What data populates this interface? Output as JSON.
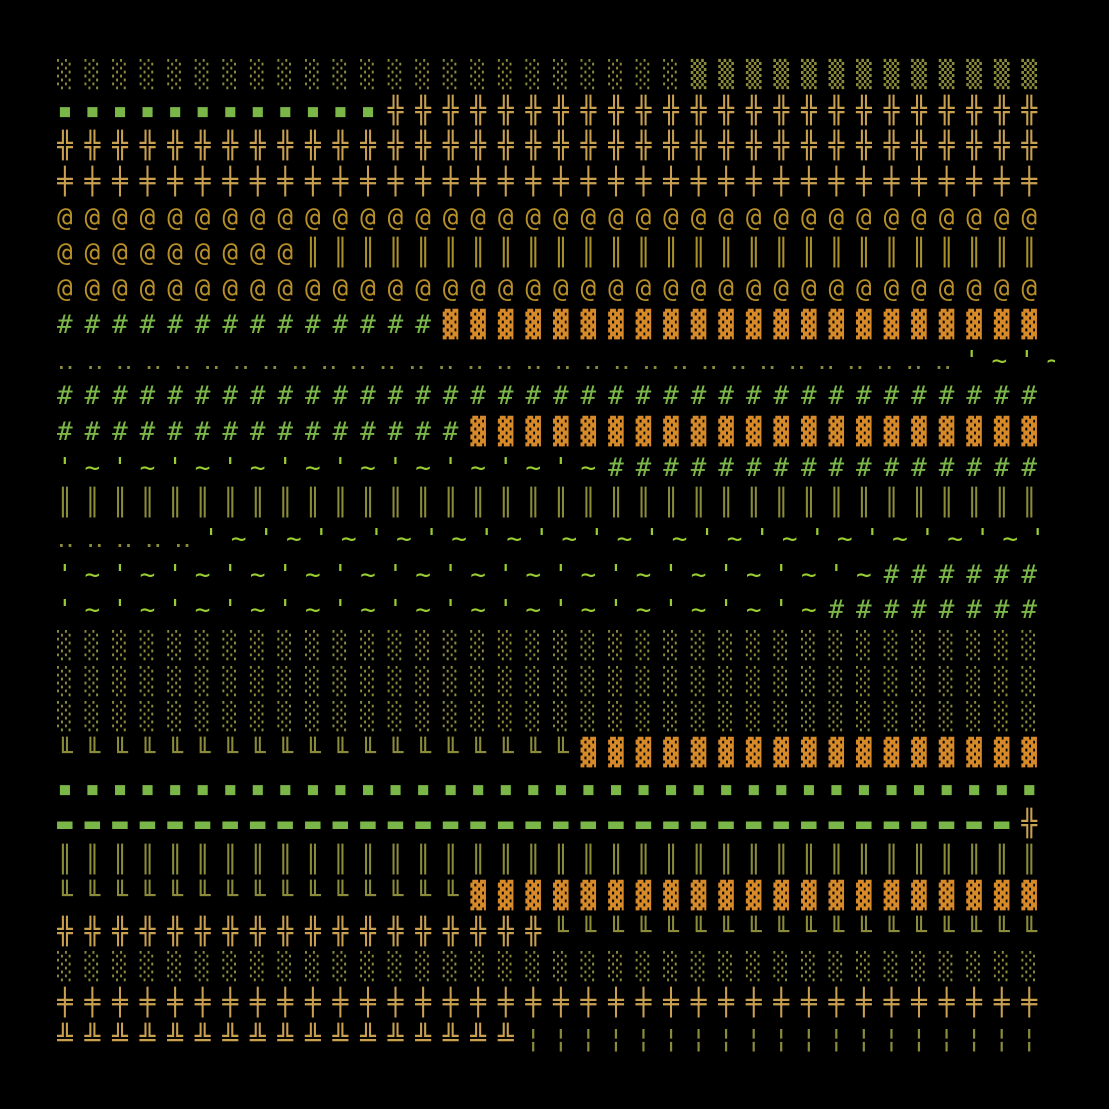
{
  "rows": [
    {
      "segments": [
        {
          "text": "░░░░░░░░░░░░░░░░░░░░░░░",
          "color": "#8b8b3a"
        },
        {
          "text": "▒▒▒▒▒▒▒▒▒▒▒▒▒",
          "color": "#8b8b3a"
        }
      ]
    },
    {
      "segments": [
        {
          "text": "▪▪▪▪▪▪▪▪▪▪▪▪",
          "color": "#7ab648"
        },
        {
          "text": "╬╬╬╬╬╬╬╬╬╬╬╬╬╬╬╬╬╬╬╬╬╬╬╬",
          "color": "#c8a050"
        }
      ]
    },
    {
      "segments": [
        {
          "text": "╬╬╬╬╬╬╬╬╬╬╬╬╬╬╬╬╬╬╬╬╬╬╬╬╬╬╬╬╬╬╬╬╬╬╬╬",
          "color": "#c8a050"
        }
      ]
    },
    {
      "segments": [
        {
          "text": "╪╪╪╪╪╪╪╪╪╪╪╪╪╪╪╪╪╪╪╪╪╪╪╪╪╪╪╪╪╪╪╪╪╪╪╪",
          "color": "#c8a050"
        }
      ]
    },
    {
      "segments": [
        {
          "text": "@@@@@@@@@@@@@@@@@@@@@@@@@@@@@@@@@@@@",
          "color": "#b8902a"
        }
      ]
    },
    {
      "segments": [
        {
          "text": "@@@@@@@@@",
          "color": "#b8902a"
        },
        {
          "text": "║║║║║║║║║║║║║║║║║║║║║║║║║║║",
          "color": "#a8902a"
        }
      ]
    },
    {
      "segments": [
        {
          "text": "@@@@@@@@@@@@@@@@@@@@@@@@@@@@@@@@@@@@",
          "color": "#b8902a"
        }
      ]
    },
    {
      "segments": [
        {
          "text": "##############",
          "color": "#7ab648"
        },
        {
          "text": "▓▓▓▓▓▓▓▓▓▓▓▓▓▓▓▓▓▓▓▓▓▓",
          "color": "#d68a2a"
        }
      ]
    },
    {
      "segments": [
        {
          "text": "‥‥‥‥‥‥‥‥‥‥‥‥‥‥‥‥‥‥‥‥‥‥‥‥‥‥‥‥‥‥‥",
          "color": "#8b8b3a"
        },
        {
          "text": "'~'~'",
          "color": "#9acd32"
        }
      ]
    },
    {
      "segments": [
        {
          "text": "####################################",
          "color": "#7ab648"
        }
      ]
    },
    {
      "segments": [
        {
          "text": "###############",
          "color": "#7ab648"
        },
        {
          "text": "▓▓▓▓▓▓▓▓▓▓▓▓▓▓▓▓▓▓▓▓▓",
          "color": "#d68a2a"
        }
      ]
    },
    {
      "segments": [
        {
          "text": "'~'~'~'~'~'~'~'~'~'~",
          "color": "#9acd32"
        },
        {
          "text": "################",
          "color": "#7ab648"
        }
      ]
    },
    {
      "segments": [
        {
          "text": "║║║║║║║║║║║║║║║║║║║║║║║║║║║║║║║║║║║║",
          "color": "#8b8b3a"
        }
      ]
    },
    {
      "segments": [
        {
          "text": "‥‥‥‥‥",
          "color": "#8b8b3a"
        },
        {
          "text": "'~'~'~'~'~'~'~'~'~'~'~'~'~'~'~'",
          "color": "#9acd32"
        }
      ]
    },
    {
      "segments": [
        {
          "text": "'~'~'~'~'~'~'~'~'~'~'~'~'~'~'~",
          "color": "#9acd32"
        },
        {
          "text": "######",
          "color": "#7ab648"
        }
      ]
    },
    {
      "segments": [
        {
          "text": "'~'~'~'~'~'~'~'~'~'~'~'~'~'~",
          "color": "#9acd32"
        },
        {
          "text": "########",
          "color": "#7ab648"
        }
      ]
    },
    {
      "segments": [
        {
          "text": "░░░░░░░░░░░░░░░░░░░░░░░░░░░░░░░░░░░░",
          "color": "#8b8b3a"
        }
      ]
    },
    {
      "segments": [
        {
          "text": "░░░░░░░░░░░░░░░░░░░░░░░░░░░░░░░░░░░░",
          "color": "#8b8b3a"
        }
      ]
    },
    {
      "segments": [
        {
          "text": "░░░░░░░░░░░░░░░░░░░░░░░░░░░░░░░░░░░░",
          "color": "#8b8b3a"
        }
      ]
    },
    {
      "segments": [
        {
          "text": "╙╙╙╙╙╙╙╙╙╙╙╙╙╙╙╙╙╙╙",
          "color": "#8b8b3a"
        },
        {
          "text": "▓▓▓▓▓▓▓▓▓▓▓▓▓▓▓▓▓",
          "color": "#d68a2a"
        }
      ]
    },
    {
      "segments": [
        {
          "text": "▪▪▪▪▪▪▪▪▪▪▪▪▪▪▪▪▪▪▪▪▪▪▪▪▪▪▪▪▪▪▪▪▪▪▪▪",
          "color": "#7ab648"
        }
      ]
    },
    {
      "segments": [
        {
          "text": "▬▬▬▬▬▬▬▬▬▬▬▬▬▬▬▬▬▬▬▬▬▬▬▬▬▬▬▬▬▬▬▬▬▬▬",
          "color": "#7ab648"
        },
        {
          "text": "╬",
          "color": "#c8a050"
        }
      ]
    },
    {
      "segments": [
        {
          "text": "║║║║║║║║║║║║║║║║║║║║║║║║║║║║║║║║║║║║",
          "color": "#8b8b3a"
        }
      ]
    },
    {
      "segments": [
        {
          "text": "╙╙╙╙╙╙╙╙╙╙╙╙╙╙╙",
          "color": "#8b8b3a"
        },
        {
          "text": "▓▓▓▓▓▓▓▓▓▓▓▓▓▓▓▓▓▓▓▓▓",
          "color": "#d68a2a"
        }
      ]
    },
    {
      "segments": [
        {
          "text": "╬╬╬╬╬╬╬╬╬╬╬╬╬╬╬╬╬╬",
          "color": "#c8a050"
        },
        {
          "text": "╙╙╙╙╙╙╙╙╙╙╙╙╙╙╙╙╙╙",
          "color": "#8b8b3a"
        }
      ]
    },
    {
      "segments": [
        {
          "text": "░░░░░░░░░░░░░░░░░░░░░░░░░░░░░░░░░░░░",
          "color": "#8b8b3a"
        }
      ]
    },
    {
      "segments": [
        {
          "text": "╪╪╪╪╪╪╪╪╪╪╪╪╪╪╪╪╪╪╪╪╪╪╪╪╪╪╪╪╪╪╪╪╪╪╪╪",
          "color": "#c8a050"
        }
      ]
    },
    {
      "segments": [
        {
          "text": "╩╩╩╩╩╩╩╩╩╩╩╩╩╩╩╩╩",
          "color": "#c8a050"
        },
        {
          "text": "¦¦¦¦¦¦¦¦¦¦¦¦¦¦¦¦¦¦¦",
          "color": "#8b8b3a"
        }
      ]
    }
  ]
}
